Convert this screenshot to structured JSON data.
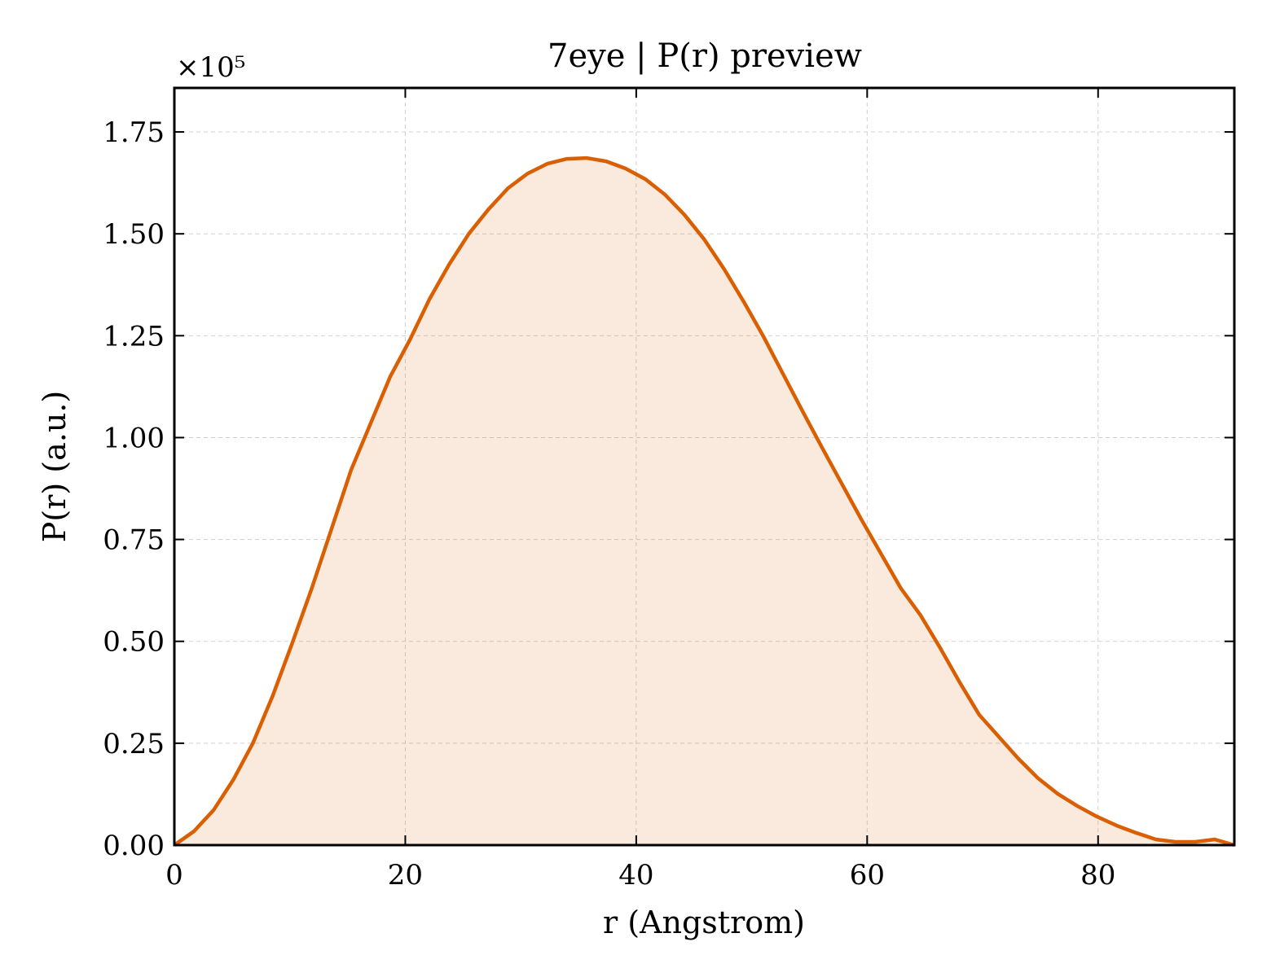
{
  "chart_data": {
    "type": "area",
    "title": "7eye | P(r) preview",
    "xlabel": "r (Angstrom)",
    "ylabel": "P(r) (a.u.)",
    "y_offset_label": "×10⁵",
    "series": [
      {
        "color": "#d95f02",
        "x": [
          0,
          1.7,
          3.4,
          5.1,
          6.8,
          8.5,
          10.2,
          11.9,
          13.6,
          15.3,
          17,
          18.7,
          20.4,
          22.1,
          23.8,
          25.5,
          27.2,
          28.9,
          30.6,
          32.3,
          34,
          35.7,
          37.4,
          39.1,
          40.8,
          42.5,
          44.2,
          45.9,
          47.6,
          49.3,
          51,
          52.7,
          54.4,
          56.1,
          57.8,
          59.5,
          61.2,
          62.9,
          64.6,
          66.3,
          68,
          69.7,
          71.4,
          73.1,
          74.8,
          76.5,
          78.2,
          79.9,
          81.6,
          83.3,
          85,
          86.7,
          88.4,
          90.1,
          91.8
        ],
        "values": [
          0,
          0.034,
          0.086,
          0.16,
          0.25,
          0.365,
          0.495,
          0.63,
          0.775,
          0.92,
          1.035,
          1.15,
          1.24,
          1.34,
          1.425,
          1.5,
          1.56,
          1.612,
          1.648,
          1.672,
          1.684,
          1.686,
          1.678,
          1.66,
          1.634,
          1.596,
          1.546,
          1.486,
          1.414,
          1.334,
          1.249,
          1.157,
          1.065,
          0.975,
          0.887,
          0.799,
          0.715,
          0.631,
          0.565,
          0.485,
          0.4,
          0.32,
          0.266,
          0.212,
          0.164,
          0.126,
          0.096,
          0.07,
          0.048,
          0.03,
          0.014,
          0.008,
          0.008,
          0.014,
          0
        ]
      }
    ],
    "xlim": [
      0,
      91.8
    ],
    "ylim": [
      0,
      1.858
    ],
    "xticks": [
      0,
      20,
      40,
      60,
      80
    ],
    "yticks": [
      {
        "value": 0,
        "label": "0.00"
      },
      {
        "value": 0.25,
        "label": "0.25"
      },
      {
        "value": 0.5,
        "label": "0.50"
      },
      {
        "value": 0.75,
        "label": "0.75"
      },
      {
        "value": 1,
        "label": "1.00"
      },
      {
        "value": 1.25,
        "label": "1.25"
      },
      {
        "value": 1.5,
        "label": "1.50"
      },
      {
        "value": 1.75,
        "label": "1.75"
      }
    ],
    "grid": true
  }
}
